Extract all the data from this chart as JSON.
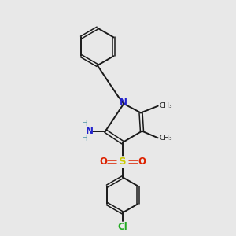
{
  "background_color": "#e8e8e8",
  "bond_color": "#1a1a1a",
  "n_color": "#2222cc",
  "nh_color": "#5599aa",
  "s_color": "#cccc00",
  "o_color": "#dd2200",
  "cl_color": "#22aa22",
  "figsize": [
    3.0,
    3.0
  ],
  "dpi": 100,
  "xlim": [
    0,
    10
  ],
  "ylim": [
    0,
    10
  ]
}
